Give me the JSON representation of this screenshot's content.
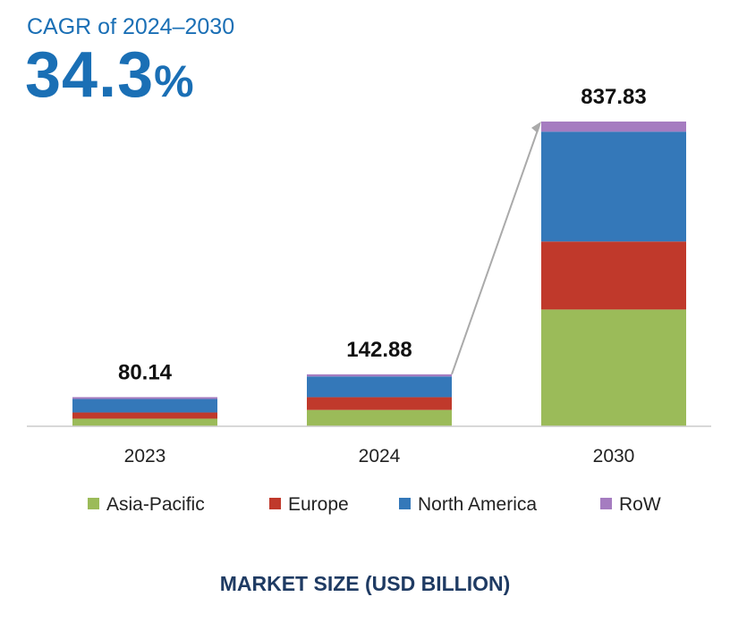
{
  "header": {
    "cagr_label": "CAGR of 2024–2030",
    "cagr_number": "34.3",
    "cagr_percent": "%"
  },
  "footer": {
    "title": "MARKET SIZE (USD BILLION)"
  },
  "chart_data": {
    "type": "bar",
    "stacked": true,
    "title": "",
    "xlabel": "",
    "ylabel": "",
    "categories": [
      "2023",
      "2024",
      "2030"
    ],
    "totals": [
      "80.14",
      "142.88",
      "837.83"
    ],
    "ylim": [
      0,
      837.83
    ],
    "grid": false,
    "legend_position": "bottom",
    "series": [
      {
        "name": "Asia-Pacific",
        "color": "#9bbb59",
        "values": [
          21,
          45,
          321
        ]
      },
      {
        "name": "Europe",
        "color": "#c0392b",
        "values": [
          17,
          35,
          187
        ]
      },
      {
        "name": "North America",
        "color": "#3478b9",
        "values": [
          37,
          57,
          302
        ]
      },
      {
        "name": "RoW",
        "color": "#a57cc0",
        "values": [
          5.14,
          5.88,
          27.83
        ]
      }
    ],
    "connector_color": "#aaaaaa"
  }
}
